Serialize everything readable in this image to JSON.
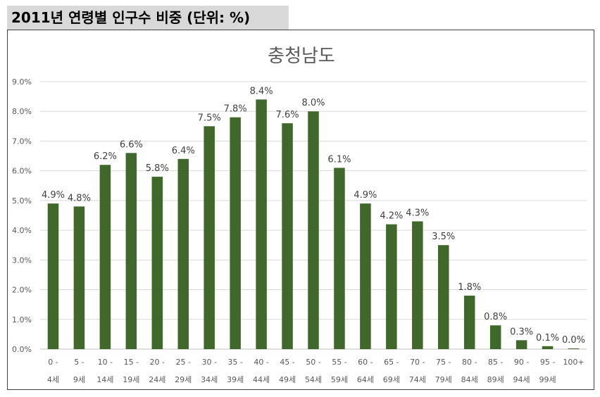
{
  "heading": "2011년 연령별 인구수 비중 (단위: %)",
  "chart_data": {
    "type": "bar",
    "title": "충청남도",
    "xlabel": "",
    "ylabel": "",
    "ylim": [
      0,
      9
    ],
    "y_ticks": [
      "0.0%",
      "1.0%",
      "2.0%",
      "3.0%",
      "4.0%",
      "5.0%",
      "6.0%",
      "7.0%",
      "8.0%",
      "9.0%"
    ],
    "grid": true,
    "bar_color": "#41682b",
    "categories": [
      [
        "0 -",
        "4세"
      ],
      [
        "5 -",
        "9세"
      ],
      [
        "10 -",
        "14세"
      ],
      [
        "15 -",
        "19세"
      ],
      [
        "20 -",
        "24세"
      ],
      [
        "25 -",
        "29세"
      ],
      [
        "30 -",
        "34세"
      ],
      [
        "35 -",
        "39세"
      ],
      [
        "40 -",
        "44세"
      ],
      [
        "45 -",
        "49세"
      ],
      [
        "50 -",
        "54세"
      ],
      [
        "55 -",
        "59세"
      ],
      [
        "60 -",
        "64세"
      ],
      [
        "65 -",
        "69세"
      ],
      [
        "70 -",
        "74세"
      ],
      [
        "75 -",
        "79세"
      ],
      [
        "80 -",
        "84세"
      ],
      [
        "85 -",
        "89세"
      ],
      [
        "90 -",
        "94세"
      ],
      [
        "95 -",
        "99세"
      ],
      [
        "100+",
        ""
      ]
    ],
    "values": [
      4.9,
      4.8,
      6.2,
      6.6,
      5.8,
      6.4,
      7.5,
      7.8,
      8.4,
      7.6,
      8.0,
      6.1,
      4.9,
      4.2,
      4.3,
      3.5,
      1.8,
      0.8,
      0.3,
      0.1,
      0.0
    ],
    "data_labels": [
      "4.9%",
      "4.8%",
      "6.2%",
      "6.6%",
      "5.8%",
      "6.4%",
      "7.5%",
      "7.8%",
      "8.4%",
      "7.6%",
      "8.0%",
      "6.1%",
      "4.9%",
      "4.2%",
      "4.3%",
      "3.5%",
      "1.8%",
      "0.8%",
      "0.3%",
      "0.1%",
      "0.0%"
    ]
  }
}
